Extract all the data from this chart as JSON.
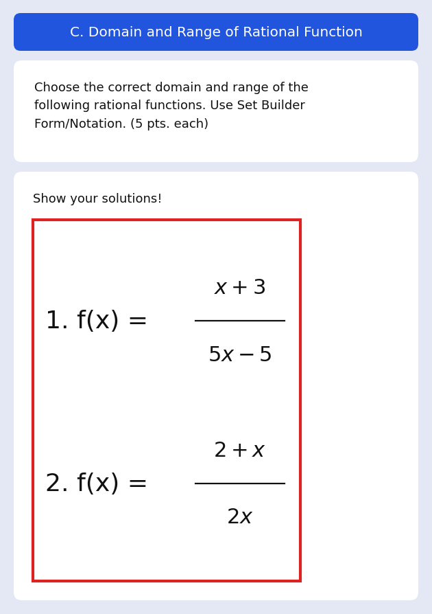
{
  "title": "C. Domain and Range of Rational Function",
  "title_bg_color": "#2255DD",
  "title_text_color": "#FFFFFF",
  "page_bg_color": "#E4E8F5",
  "card_bg_color": "#FFFFFF",
  "instruction_text": "Choose the correct domain and range of the\nfollowing rational functions. Use Set Builder\nForm/Notation. (5 pts. each)",
  "solutions_label": "Show your solutions!",
  "red_box_color": "#DD2222",
  "text_color": "#111111",
  "func1_label": "1. f(x) =",
  "func1_num": "$x + 3$",
  "func1_den": "$5x-5$",
  "func2_label": "2. f(x) =",
  "func2_num": "$2 + x$",
  "func2_den": "$2x$"
}
